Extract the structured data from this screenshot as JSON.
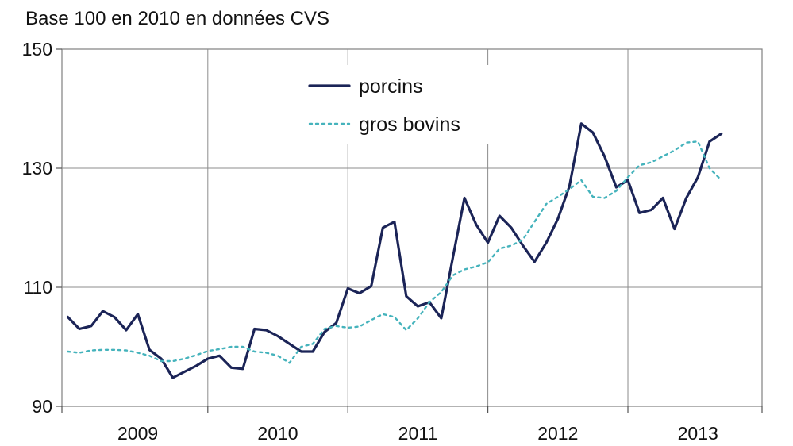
{
  "chart_data": {
    "type": "line",
    "title": "Base 100 en 2010 en données CVS",
    "ylim": [
      90,
      150
    ],
    "yticks": [
      90,
      110,
      130,
      150
    ],
    "xlim": [
      2008.958,
      2013.958
    ],
    "x_tick_labels": [
      {
        "label": "2009",
        "x": 2009.5
      },
      {
        "label": "2010",
        "x": 2010.5
      },
      {
        "label": "2011",
        "x": 2011.5
      },
      {
        "label": "2012",
        "x": 2012.5
      },
      {
        "label": "2013",
        "x": 2013.5
      }
    ],
    "year_boundaries": [
      2010,
      2011,
      2012,
      2013
    ],
    "grid": true,
    "legend_position": "top-center",
    "series": [
      {
        "name": "porcins",
        "color": "#1b2457",
        "style": "solid",
        "values": [
          [
            2009.0,
            105.0
          ],
          [
            2009.083,
            103.0
          ],
          [
            2009.167,
            103.5
          ],
          [
            2009.25,
            106.0
          ],
          [
            2009.333,
            105.0
          ],
          [
            2009.417,
            102.8
          ],
          [
            2009.5,
            105.5
          ],
          [
            2009.583,
            99.5
          ],
          [
            2009.667,
            98.0
          ],
          [
            2009.75,
            94.8
          ],
          [
            2009.833,
            95.8
          ],
          [
            2009.917,
            96.8
          ],
          [
            2010.0,
            98.0
          ],
          [
            2010.083,
            98.5
          ],
          [
            2010.167,
            96.5
          ],
          [
            2010.25,
            96.3
          ],
          [
            2010.333,
            103.0
          ],
          [
            2010.417,
            102.8
          ],
          [
            2010.5,
            101.8
          ],
          [
            2010.583,
            100.5
          ],
          [
            2010.667,
            99.2
          ],
          [
            2010.75,
            99.2
          ],
          [
            2010.833,
            102.5
          ],
          [
            2010.917,
            104.0
          ],
          [
            2011.0,
            109.8
          ],
          [
            2011.083,
            109.0
          ],
          [
            2011.167,
            110.2
          ],
          [
            2011.25,
            120.0
          ],
          [
            2011.333,
            121.0
          ],
          [
            2011.417,
            108.5
          ],
          [
            2011.5,
            106.8
          ],
          [
            2011.583,
            107.5
          ],
          [
            2011.667,
            104.8
          ],
          [
            2011.75,
            115.0
          ],
          [
            2011.833,
            125.0
          ],
          [
            2011.917,
            120.5
          ],
          [
            2012.0,
            117.5
          ],
          [
            2012.083,
            122.0
          ],
          [
            2012.167,
            120.0
          ],
          [
            2012.25,
            117.0
          ],
          [
            2012.333,
            114.3
          ],
          [
            2012.417,
            117.5
          ],
          [
            2012.5,
            121.5
          ],
          [
            2012.583,
            127.0
          ],
          [
            2012.667,
            137.5
          ],
          [
            2012.75,
            136.0
          ],
          [
            2012.833,
            132.0
          ],
          [
            2012.917,
            126.8
          ],
          [
            2013.0,
            128.0
          ],
          [
            2013.083,
            122.5
          ],
          [
            2013.167,
            123.0
          ],
          [
            2013.25,
            125.0
          ],
          [
            2013.333,
            119.8
          ],
          [
            2013.417,
            125.0
          ],
          [
            2013.5,
            128.5
          ],
          [
            2013.583,
            134.5
          ],
          [
            2013.667,
            135.8
          ]
        ]
      },
      {
        "name": "gros bovins",
        "color": "#45b3bc",
        "style": "dotted",
        "values": [
          [
            2009.0,
            99.2
          ],
          [
            2009.083,
            99.0
          ],
          [
            2009.167,
            99.4
          ],
          [
            2009.25,
            99.5
          ],
          [
            2009.333,
            99.5
          ],
          [
            2009.417,
            99.4
          ],
          [
            2009.5,
            99.0
          ],
          [
            2009.583,
            98.5
          ],
          [
            2009.667,
            97.6
          ],
          [
            2009.75,
            97.6
          ],
          [
            2009.833,
            98.0
          ],
          [
            2009.917,
            98.6
          ],
          [
            2010.0,
            99.3
          ],
          [
            2010.083,
            99.6
          ],
          [
            2010.167,
            100.0
          ],
          [
            2010.25,
            100.0
          ],
          [
            2010.333,
            99.2
          ],
          [
            2010.417,
            99.0
          ],
          [
            2010.5,
            98.5
          ],
          [
            2010.583,
            97.3
          ],
          [
            2010.667,
            100.0
          ],
          [
            2010.75,
            100.5
          ],
          [
            2010.833,
            103.0
          ],
          [
            2010.917,
            103.5
          ],
          [
            2011.0,
            103.2
          ],
          [
            2011.083,
            103.4
          ],
          [
            2011.167,
            104.5
          ],
          [
            2011.25,
            105.5
          ],
          [
            2011.333,
            105.0
          ],
          [
            2011.417,
            102.8
          ],
          [
            2011.5,
            104.8
          ],
          [
            2011.583,
            107.5
          ],
          [
            2011.667,
            109.2
          ],
          [
            2011.75,
            112.0
          ],
          [
            2011.833,
            113.0
          ],
          [
            2011.917,
            113.5
          ],
          [
            2012.0,
            114.2
          ],
          [
            2012.083,
            116.5
          ],
          [
            2012.167,
            117.0
          ],
          [
            2012.25,
            118.0
          ],
          [
            2012.333,
            121.0
          ],
          [
            2012.417,
            124.0
          ],
          [
            2012.5,
            125.2
          ],
          [
            2012.583,
            126.5
          ],
          [
            2012.667,
            128.0
          ],
          [
            2012.75,
            125.2
          ],
          [
            2012.833,
            125.0
          ],
          [
            2012.917,
            126.2
          ],
          [
            2013.0,
            128.5
          ],
          [
            2013.083,
            130.5
          ],
          [
            2013.167,
            131.0
          ],
          [
            2013.25,
            132.0
          ],
          [
            2013.333,
            133.0
          ],
          [
            2013.417,
            134.3
          ],
          [
            2013.5,
            134.5
          ],
          [
            2013.583,
            130.0
          ],
          [
            2013.667,
            128.0
          ]
        ]
      }
    ]
  }
}
